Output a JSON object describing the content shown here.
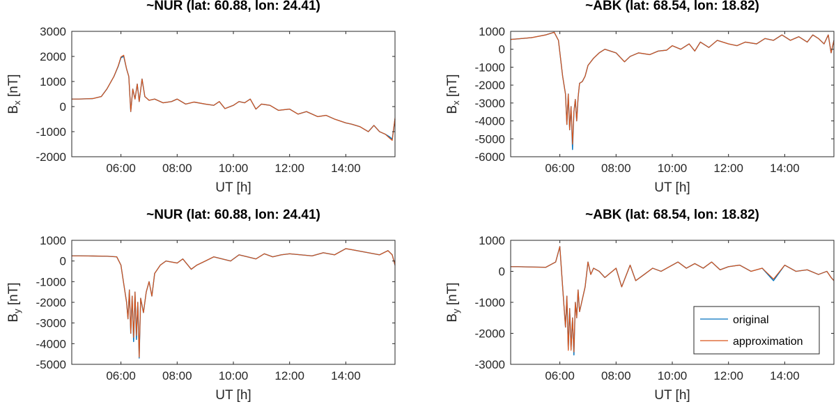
{
  "legend": {
    "entries": [
      "original",
      "approximation"
    ],
    "placement": "bottom-right of panel 4"
  },
  "colors": {
    "original": "#0072BD",
    "approximation": "#D95319",
    "axes": "#262626"
  },
  "chart_data": [
    {
      "type": "line",
      "title": "~NUR (lat: 60.88, lon: 24.41)",
      "xlabel": "UT [h]",
      "ylabel": {
        "main": "B",
        "sub": "x",
        "unit": " [nT]"
      },
      "xlim": [
        4.25,
        15.75
      ],
      "ylim": [
        -2000,
        3000
      ],
      "xticks": [
        6,
        8,
        10,
        12,
        14
      ],
      "xticklabels": [
        "06:00",
        "08:00",
        "10:00",
        "12:00",
        "14:00"
      ],
      "yticks": [
        -2000,
        -1000,
        0,
        1000,
        2000,
        3000
      ],
      "yticklabels": [
        "-2000",
        "-1000",
        "0",
        "1000",
        "2000",
        "3000"
      ],
      "x": [
        4.25,
        4.5,
        5.0,
        5.3,
        5.5,
        5.75,
        5.9,
        6.0,
        6.1,
        6.2,
        6.28,
        6.35,
        6.42,
        6.5,
        6.58,
        6.65,
        6.75,
        6.85,
        7.0,
        7.2,
        7.5,
        7.8,
        8.0,
        8.3,
        8.6,
        9.0,
        9.3,
        9.5,
        9.7,
        10.0,
        10.2,
        10.4,
        10.6,
        10.8,
        11.0,
        11.3,
        11.6,
        12.0,
        12.3,
        12.6,
        13.0,
        13.3,
        13.6,
        14.0,
        14.2,
        14.5,
        14.8,
        15.0,
        15.2,
        15.4,
        15.55,
        15.65,
        15.75
      ],
      "series": [
        {
          "name": "original",
          "values": [
            300,
            300,
            320,
            400,
            700,
            1200,
            1600,
            1950,
            2000,
            1500,
            1200,
            -200,
            700,
            300,
            900,
            200,
            1100,
            400,
            250,
            300,
            150,
            200,
            300,
            100,
            180,
            100,
            50,
            200,
            -80,
            50,
            200,
            150,
            300,
            -100,
            100,
            50,
            -150,
            -100,
            -300,
            -200,
            -400,
            -350,
            -500,
            -650,
            -700,
            -800,
            -1000,
            -750,
            -1000,
            -1100,
            -1200,
            -1300,
            -500
          ]
        },
        {
          "name": "approximation",
          "values": [
            300,
            300,
            320,
            400,
            700,
            1200,
            1620,
            1980,
            2050,
            1500,
            1200,
            -200,
            700,
            300,
            900,
            200,
            1100,
            400,
            250,
            300,
            150,
            200,
            300,
            100,
            180,
            100,
            50,
            200,
            -80,
            50,
            200,
            150,
            300,
            -100,
            100,
            50,
            -150,
            -100,
            -300,
            -200,
            -400,
            -350,
            -500,
            -650,
            -700,
            -800,
            -1000,
            -750,
            -1000,
            -1100,
            -1250,
            -1350,
            -450
          ]
        }
      ]
    },
    {
      "type": "line",
      "title": "~ABK (lat: 68.54, lon: 18.82)",
      "xlabel": "UT [h]",
      "ylabel": {
        "main": "B",
        "sub": "x",
        "unit": " [nT]"
      },
      "xlim": [
        4.25,
        15.75
      ],
      "ylim": [
        -6000,
        1000
      ],
      "xticks": [
        6,
        8,
        10,
        12,
        14
      ],
      "xticklabels": [
        "06:00",
        "08:00",
        "10:00",
        "12:00",
        "14:00"
      ],
      "yticks": [
        -6000,
        -5000,
        -4000,
        -3000,
        -2000,
        -1000,
        0,
        1000
      ],
      "yticklabels": [
        "-6000",
        "-5000",
        "-4000",
        "-3000",
        "-2000",
        "-1000",
        "0",
        "1000"
      ],
      "x": [
        4.25,
        4.5,
        5.0,
        5.5,
        5.8,
        5.95,
        6.1,
        6.2,
        6.25,
        6.3,
        6.35,
        6.4,
        6.45,
        6.5,
        6.55,
        6.6,
        6.65,
        6.7,
        6.8,
        6.9,
        7.0,
        7.2,
        7.4,
        7.6,
        8.0,
        8.3,
        8.5,
        8.8,
        9.2,
        9.5,
        9.8,
        10.0,
        10.3,
        10.6,
        10.8,
        11.0,
        11.3,
        11.6,
        12.0,
        12.3,
        12.6,
        13.0,
        13.3,
        13.6,
        13.9,
        14.2,
        14.5,
        14.8,
        15.0,
        15.2,
        15.4,
        15.55,
        15.65,
        15.75
      ],
      "series": [
        {
          "name": "original",
          "values": [
            550,
            580,
            650,
            800,
            950,
            500,
            -1500,
            -2500,
            -4200,
            -2500,
            -4500,
            -3200,
            -5600,
            -3500,
            -2800,
            -4000,
            -2700,
            -1900,
            -1800,
            -1500,
            -900,
            -500,
            -200,
            0,
            -200,
            -700,
            -400,
            -200,
            -300,
            -100,
            -50,
            200,
            0,
            300,
            -100,
            400,
            100,
            500,
            300,
            200,
            400,
            300,
            600,
            500,
            800,
            500,
            700,
            400,
            800,
            600,
            300,
            800,
            -200,
            500
          ]
        },
        {
          "name": "approximation",
          "values": [
            550,
            580,
            650,
            800,
            950,
            500,
            -1500,
            -2500,
            -4200,
            -2500,
            -4500,
            -3200,
            -5300,
            -3500,
            -2800,
            -4000,
            -2700,
            -1900,
            -1800,
            -1500,
            -900,
            -500,
            -200,
            0,
            -200,
            -700,
            -400,
            -200,
            -300,
            -100,
            -50,
            200,
            0,
            300,
            -100,
            400,
            100,
            500,
            300,
            200,
            400,
            300,
            600,
            500,
            800,
            500,
            700,
            400,
            800,
            600,
            300,
            800,
            -200,
            500
          ]
        }
      ]
    },
    {
      "type": "line",
      "title": "~NUR (lat: 60.88, lon: 24.41)",
      "xlabel": "UT [h]",
      "ylabel": {
        "main": "B",
        "sub": "y",
        "unit": " [nT]"
      },
      "xlim": [
        4.25,
        15.75
      ],
      "ylim": [
        -5000,
        1000
      ],
      "xticks": [
        6,
        8,
        10,
        12,
        14
      ],
      "xticklabels": [
        "06:00",
        "08:00",
        "10:00",
        "12:00",
        "14:00"
      ],
      "yticks": [
        -5000,
        -4000,
        -3000,
        -2000,
        -1000,
        0,
        1000
      ],
      "yticklabels": [
        "-5000",
        "-4000",
        "-3000",
        "-2000",
        "-1000",
        "0",
        "1000"
      ],
      "x": [
        4.25,
        4.5,
        5.0,
        5.5,
        5.85,
        6.0,
        6.1,
        6.2,
        6.25,
        6.3,
        6.35,
        6.4,
        6.45,
        6.5,
        6.55,
        6.6,
        6.65,
        6.7,
        6.8,
        6.9,
        7.0,
        7.1,
        7.2,
        7.4,
        7.6,
        8.0,
        8.2,
        8.5,
        8.7,
        9.0,
        9.3,
        9.6,
        9.9,
        10.2,
        10.5,
        10.8,
        11.1,
        11.4,
        11.7,
        12.0,
        12.4,
        12.8,
        13.2,
        13.6,
        14.0,
        14.4,
        14.8,
        15.2,
        15.5,
        15.65,
        15.75
      ],
      "series": [
        {
          "name": "original",
          "values": [
            250,
            250,
            240,
            230,
            200,
            -200,
            -1100,
            -2000,
            -2800,
            -1400,
            -3500,
            -1700,
            -3900,
            -1500,
            -3800,
            -2000,
            -4700,
            -1800,
            -2500,
            -1500,
            -1000,
            -1700,
            -600,
            -200,
            0,
            -100,
            100,
            -400,
            -200,
            0,
            200,
            100,
            0,
            300,
            200,
            100,
            350,
            200,
            300,
            350,
            300,
            250,
            400,
            300,
            600,
            500,
            400,
            300,
            500,
            300,
            -200
          ]
        },
        {
          "name": "approximation",
          "values": [
            250,
            250,
            240,
            230,
            200,
            -200,
            -1100,
            -2000,
            -2800,
            -1400,
            -3500,
            -1700,
            -3700,
            -1500,
            -3600,
            -2000,
            -4650,
            -1800,
            -2500,
            -1500,
            -1000,
            -1700,
            -600,
            -200,
            0,
            -100,
            100,
            -400,
            -200,
            0,
            200,
            100,
            0,
            300,
            200,
            100,
            350,
            200,
            300,
            350,
            300,
            250,
            400,
            300,
            600,
            500,
            400,
            300,
            500,
            300,
            -200
          ]
        }
      ]
    },
    {
      "type": "line",
      "title": "~ABK (lat: 68.54, lon: 18.82)",
      "xlabel": "UT [h]",
      "ylabel": {
        "main": "B",
        "sub": "y",
        "unit": " [nT]"
      },
      "xlim": [
        4.25,
        15.75
      ],
      "ylim": [
        -3000,
        1000
      ],
      "xticks": [
        6,
        8,
        10,
        12,
        14
      ],
      "xticklabels": [
        "06:00",
        "08:00",
        "10:00",
        "12:00",
        "14:00"
      ],
      "yticks": [
        -3000,
        -2000,
        -1000,
        0,
        1000
      ],
      "yticklabels": [
        "-3000",
        "-2000",
        "-1000",
        "0",
        "1000"
      ],
      "x": [
        4.25,
        4.5,
        5.0,
        5.5,
        5.85,
        6.0,
        6.1,
        6.2,
        6.25,
        6.3,
        6.35,
        6.4,
        6.45,
        6.5,
        6.55,
        6.6,
        6.65,
        6.7,
        6.8,
        6.9,
        7.0,
        7.1,
        7.2,
        7.4,
        7.6,
        8.0,
        8.2,
        8.5,
        8.7,
        9.0,
        9.3,
        9.6,
        9.9,
        10.2,
        10.5,
        10.8,
        11.1,
        11.4,
        11.7,
        12.0,
        12.4,
        12.8,
        13.2,
        13.6,
        14.0,
        14.4,
        14.8,
        15.2,
        15.5,
        15.65,
        15.75
      ],
      "series": [
        {
          "name": "original",
          "values": [
            150,
            150,
            140,
            130,
            300,
            800,
            -500,
            -1800,
            -800,
            -2500,
            -1200,
            -2500,
            -1500,
            -2700,
            -1000,
            -1500,
            -600,
            -1300,
            -900,
            -500,
            300,
            -100,
            100,
            0,
            -200,
            100,
            -500,
            200,
            -300,
            -100,
            100,
            0,
            150,
            300,
            100,
            250,
            100,
            300,
            50,
            150,
            200,
            0,
            100,
            -300,
            200,
            0,
            50,
            -100,
            0,
            -200,
            -300
          ]
        },
        {
          "name": "approximation",
          "values": [
            150,
            150,
            140,
            130,
            300,
            800,
            -500,
            -1800,
            -800,
            -2550,
            -1200,
            -2550,
            -1500,
            -2600,
            -1000,
            -1500,
            -600,
            -1300,
            -900,
            -500,
            300,
            -100,
            100,
            0,
            -200,
            100,
            -500,
            200,
            -300,
            -100,
            100,
            0,
            150,
            300,
            100,
            250,
            100,
            300,
            50,
            150,
            200,
            0,
            100,
            -250,
            200,
            0,
            50,
            -100,
            0,
            -200,
            -300
          ]
        }
      ]
    }
  ]
}
